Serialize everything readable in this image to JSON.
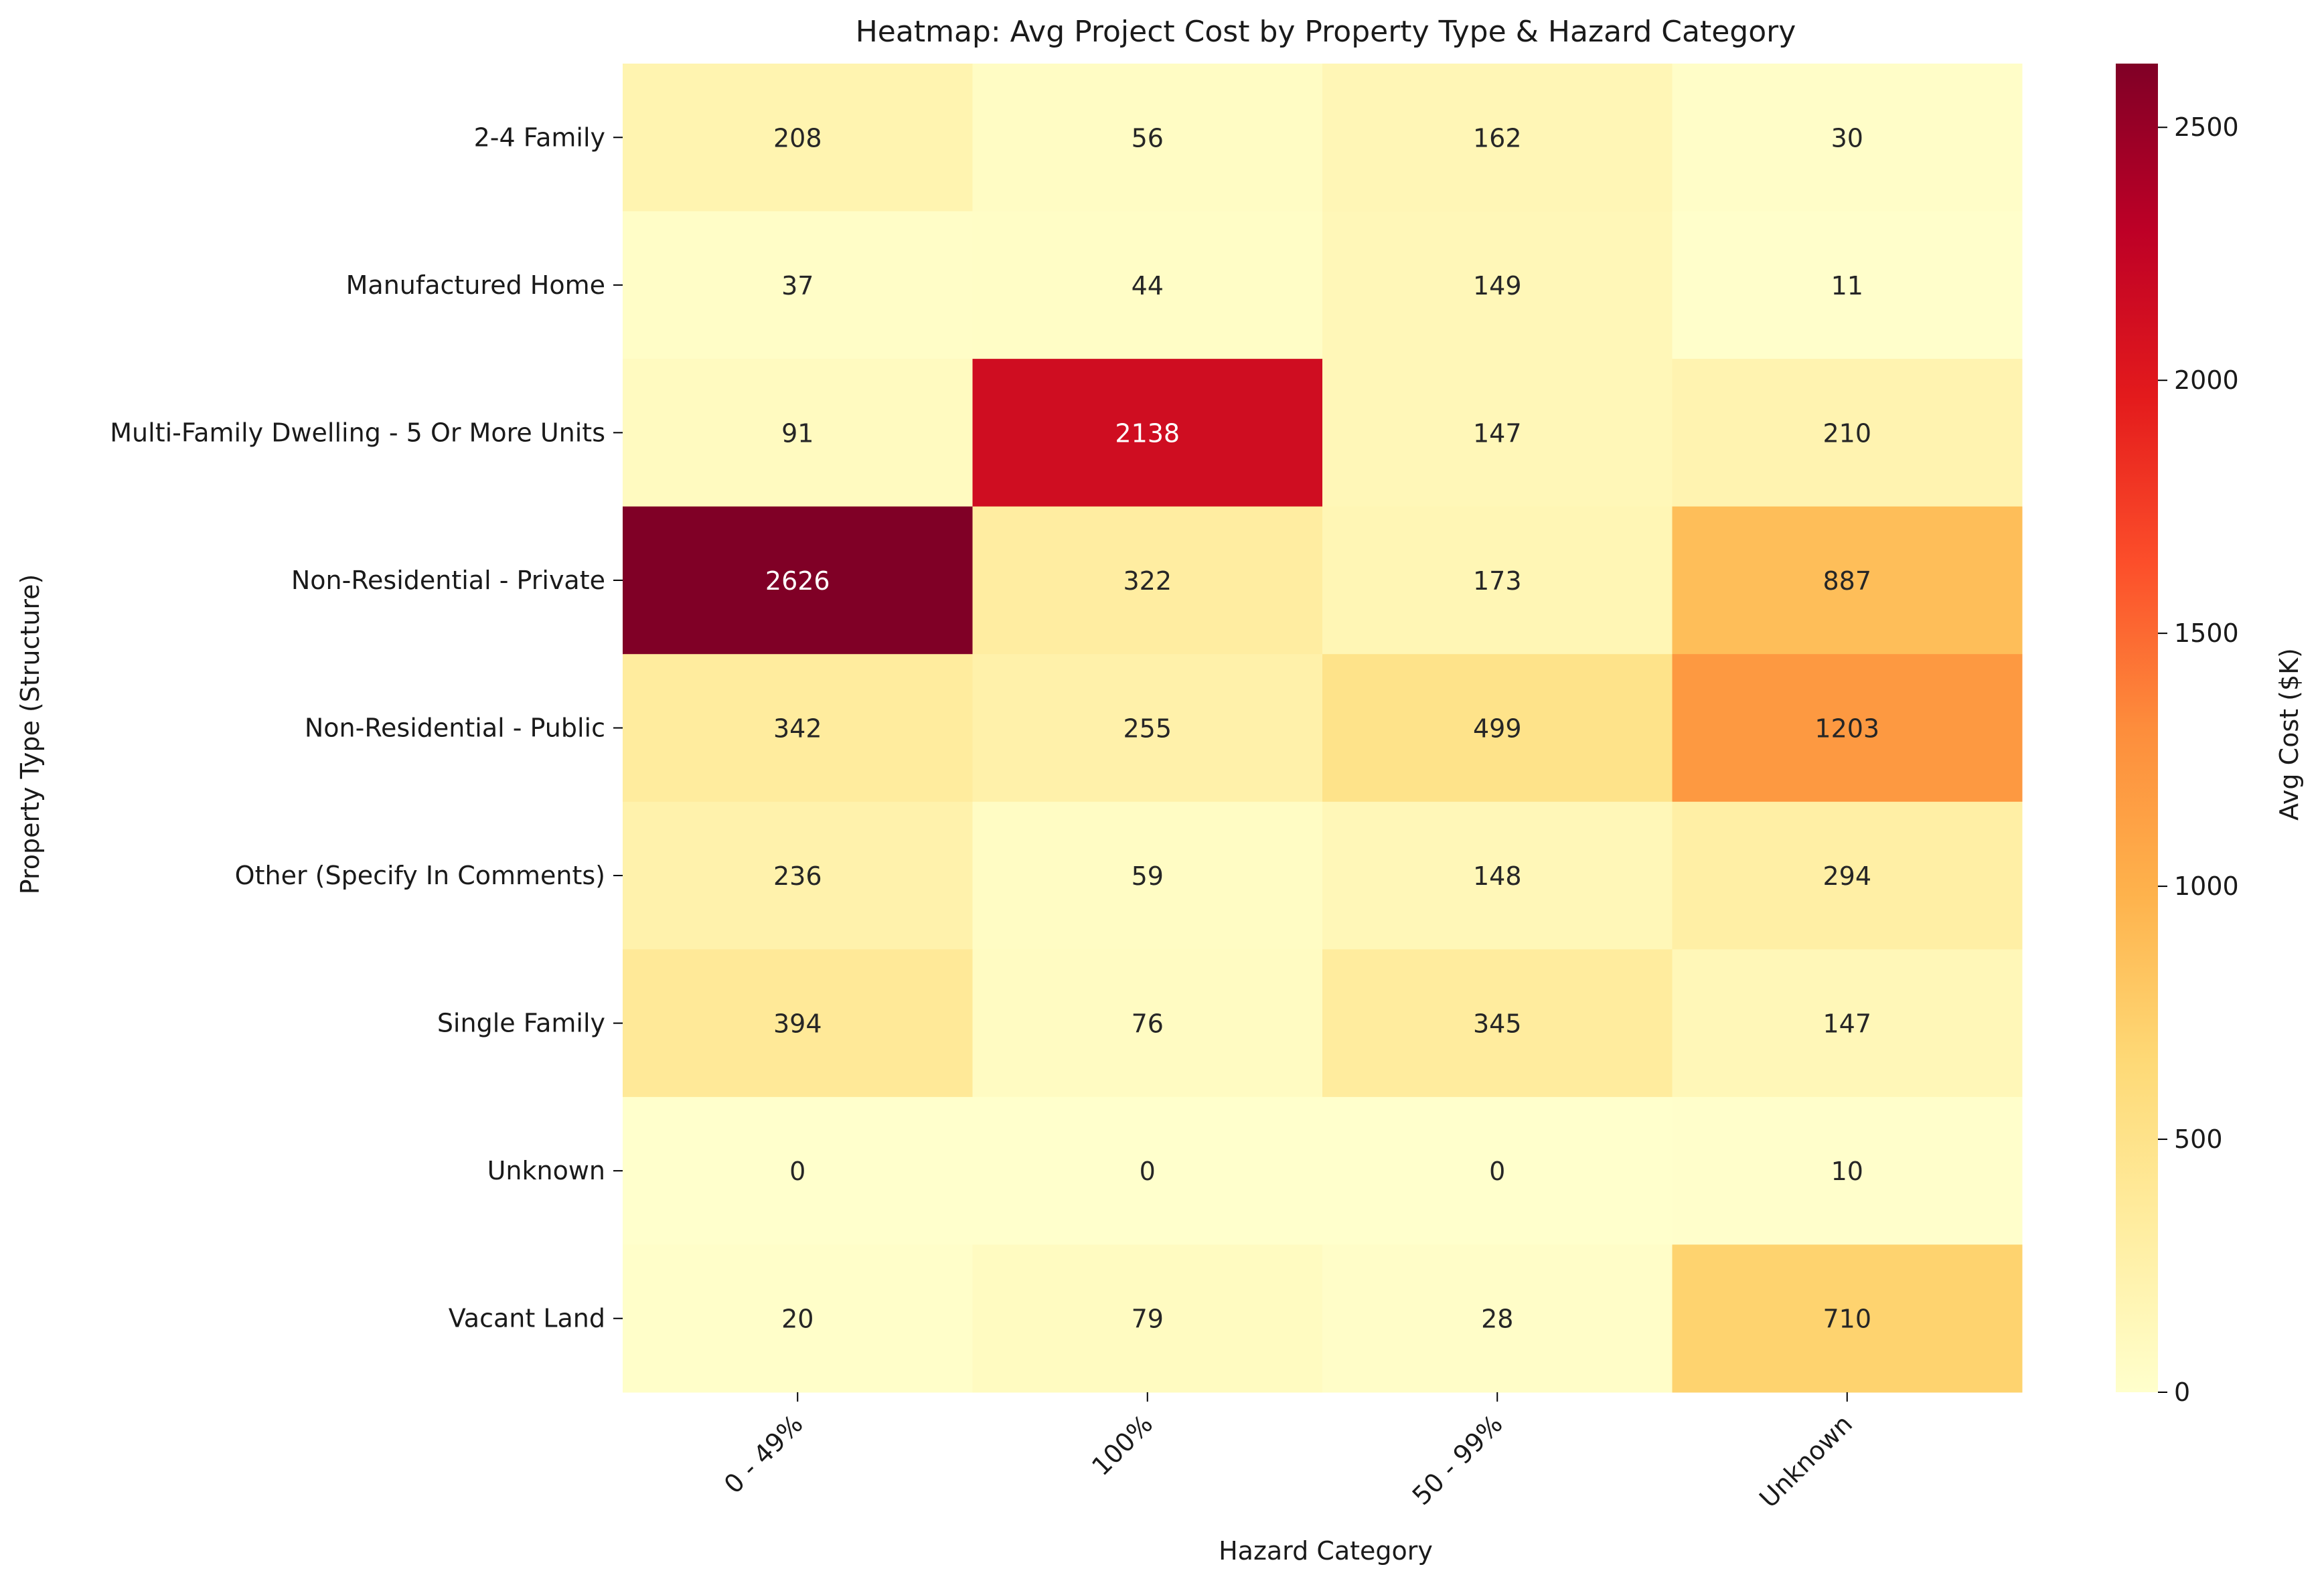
{
  "chart_data": {
    "type": "heatmap",
    "title": "Heatmap: Avg Project Cost by Property Type & Hazard Category",
    "xlabel": "Hazard Category",
    "ylabel": "Property Type (Structure)",
    "x_categories": [
      "0 - 49%",
      "100%",
      "50 - 99%",
      "Unknown"
    ],
    "y_categories": [
      "2-4 Family",
      "Manufactured Home",
      "Multi-Family Dwelling - 5 Or More Units",
      "Non-Residential - Private",
      "Non-Residential - Public",
      "Other (Specify In Comments)",
      "Single Family",
      "Unknown",
      "Vacant Land"
    ],
    "values": [
      [
        208,
        56,
        162,
        30
      ],
      [
        37,
        44,
        149,
        11
      ],
      [
        91,
        2138,
        147,
        210
      ],
      [
        2626,
        322,
        173,
        887
      ],
      [
        342,
        255,
        499,
        1203
      ],
      [
        236,
        59,
        148,
        294
      ],
      [
        394,
        76,
        345,
        147
      ],
      [
        0,
        0,
        0,
        10
      ],
      [
        20,
        79,
        28,
        710
      ]
    ],
    "colorbar": {
      "label": "Avg Cost ($K)",
      "min": 0,
      "max": 2626,
      "ticks": [
        0,
        500,
        1000,
        1500,
        2000,
        2500
      ],
      "colormap": "YlOrRd",
      "stops": [
        "#ffffcc",
        "#ffeda0",
        "#fed976",
        "#feb24c",
        "#fd8d3c",
        "#fc4e2a",
        "#e31a1c",
        "#bd0026",
        "#800026"
      ]
    },
    "grid": false,
    "legend": "colorbar-right"
  }
}
